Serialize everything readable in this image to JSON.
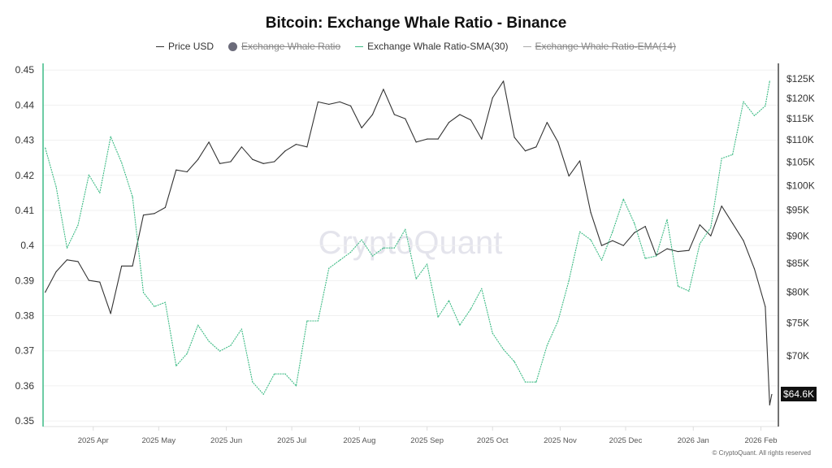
{
  "title": "Bitcoin: Exchange Whale Ratio - Binance",
  "legend": [
    {
      "label": "Price USD",
      "color": "#333333",
      "enabled": true,
      "icon": "line"
    },
    {
      "label": "Exchange Whale Ratio",
      "color": "#6b6b7a",
      "enabled": false,
      "icon": "circle"
    },
    {
      "label": "Exchange Whale Ratio-SMA(30)",
      "color": "#3dbb85",
      "enabled": true,
      "icon": "line"
    },
    {
      "label": "Exchange Whale Ratio-EMA(14)",
      "color": "#999999",
      "enabled": false,
      "icon": "line"
    }
  ],
  "watermark": "CryptoQuant",
  "footer": "© CryptoQuant. All rights reserved",
  "price_tag": "$64.6K",
  "chart_data": {
    "type": "line",
    "title": "Bitcoin: Exchange Whale Ratio - Binance",
    "xlim": [
      "2025-03-09",
      "2026-02-09"
    ],
    "x_ticks": [
      {
        "date": "2025-04-01",
        "label": "2025 Apr"
      },
      {
        "date": "2025-05-01",
        "label": "2025 May"
      },
      {
        "date": "2025-06-01",
        "label": "2025 Jun"
      },
      {
        "date": "2025-07-01",
        "label": "2025 Jul"
      },
      {
        "date": "2025-08-01",
        "label": "2025 Aug"
      },
      {
        "date": "2025-09-01",
        "label": "2025 Sep"
      },
      {
        "date": "2025-10-01",
        "label": "2025 Oct"
      },
      {
        "date": "2025-11-01",
        "label": "2025 Nov"
      },
      {
        "date": "2025-12-01",
        "label": "2025 Dec"
      },
      {
        "date": "2026-01-01",
        "label": "2026 Jan"
      },
      {
        "date": "2026-02-01",
        "label": "2026 Feb"
      }
    ],
    "left_axis": {
      "scale": "linear",
      "ylim": [
        0.3484,
        0.4519
      ],
      "ticks": [
        0.45,
        0.44,
        0.43,
        0.42,
        0.41,
        0.4,
        0.39,
        0.38,
        0.37,
        0.36,
        0.35
      ],
      "tick_labels": [
        "0.45",
        "0.44",
        "0.43",
        "0.42",
        "0.41",
        "0.4",
        "0.39",
        "0.38",
        "0.37",
        "0.36",
        "0.35"
      ],
      "color": "#3dbb85"
    },
    "right_axis": {
      "scale": "log",
      "ylim": [
        60400,
        129100
      ],
      "ticks": [
        125000,
        120000,
        115000,
        110000,
        105000,
        100000,
        95000,
        90000,
        85000,
        80000,
        75000,
        70000
      ],
      "tick_labels": [
        "$125K",
        "$120K",
        "$115K",
        "$110K",
        "$105K",
        "$100K",
        "$95K",
        "$90K",
        "$85K",
        "$80K",
        "$75K",
        "$70K"
      ],
      "color": "#333333"
    },
    "grid": true,
    "legend_position": "top",
    "x": [
      "2025-03-10",
      "2025-03-15",
      "2025-03-20",
      "2025-03-25",
      "2025-03-30",
      "2025-04-04",
      "2025-04-09",
      "2025-04-14",
      "2025-04-19",
      "2025-04-24",
      "2025-04-29",
      "2025-05-04",
      "2025-05-09",
      "2025-05-14",
      "2025-05-19",
      "2025-05-24",
      "2025-05-29",
      "2025-06-03",
      "2025-06-08",
      "2025-06-13",
      "2025-06-18",
      "2025-06-23",
      "2025-06-28",
      "2025-07-03",
      "2025-07-08",
      "2025-07-13",
      "2025-07-18",
      "2025-07-23",
      "2025-07-28",
      "2025-08-02",
      "2025-08-07",
      "2025-08-12",
      "2025-08-17",
      "2025-08-22",
      "2025-08-27",
      "2025-09-01",
      "2025-09-06",
      "2025-09-11",
      "2025-09-16",
      "2025-09-21",
      "2025-09-26",
      "2025-10-01",
      "2025-10-06",
      "2025-10-11",
      "2025-10-16",
      "2025-10-21",
      "2025-10-26",
      "2025-10-31",
      "2025-11-05",
      "2025-11-10",
      "2025-11-15",
      "2025-11-20",
      "2025-11-25",
      "2025-11-30",
      "2025-12-05",
      "2025-12-10",
      "2025-12-15",
      "2025-12-20",
      "2025-12-25",
      "2025-12-30",
      "2026-01-04",
      "2026-01-09",
      "2026-01-14",
      "2026-01-19",
      "2026-01-24",
      "2026-01-29",
      "2026-02-03",
      "2026-02-05",
      "2026-02-06"
    ],
    "series": [
      {
        "name": "Price USD",
        "axis": "right",
        "color": "#333333",
        "values": [
          80000,
          83500,
          85600,
          85300,
          82000,
          81700,
          76500,
          84500,
          84500,
          94000,
          94300,
          95500,
          103300,
          102900,
          105600,
          109500,
          104700,
          105100,
          108400,
          105600,
          104700,
          105100,
          107500,
          109000,
          108400,
          119100,
          118500,
          119100,
          118100,
          112800,
          116000,
          122300,
          116000,
          115000,
          109500,
          110200,
          110200,
          114100,
          116000,
          114700,
          110200,
          120100,
          124400,
          110600,
          107500,
          108400,
          114100,
          109500,
          102000,
          105300,
          94500,
          88200,
          89100,
          88200,
          90600,
          91800,
          86400,
          87600,
          87100,
          87300,
          92100,
          90000,
          95800,
          92400,
          89100,
          84000,
          77600,
          63200,
          64600
        ]
      },
      {
        "name": "Exchange Whale Ratio-SMA(30)",
        "axis": "left",
        "color": "#3dbb85",
        "values": [
          0.4278,
          0.4167,
          0.3993,
          0.4058,
          0.4201,
          0.415,
          0.431,
          0.4236,
          0.4139,
          0.3866,
          0.3826,
          0.3838,
          0.3657,
          0.3692,
          0.3773,
          0.3727,
          0.3699,
          0.3715,
          0.3762,
          0.3611,
          0.3576,
          0.3634,
          0.3634,
          0.36,
          0.3785,
          0.3785,
          0.3935,
          0.3958,
          0.3981,
          0.4016,
          0.397,
          0.3993,
          0.3993,
          0.4046,
          0.3905,
          0.3947,
          0.3796,
          0.3843,
          0.3773,
          0.3819,
          0.3877,
          0.375,
          0.3704,
          0.3669,
          0.3611,
          0.3611,
          0.3715,
          0.3785,
          0.39,
          0.4039,
          0.4016,
          0.3958,
          0.4039,
          0.4132,
          0.4063,
          0.3963,
          0.397,
          0.4074,
          0.3884,
          0.387,
          0.4005,
          0.4051,
          0.4248,
          0.4259,
          0.441,
          0.437,
          0.4398,
          0.4468,
          null
        ]
      }
    ]
  }
}
